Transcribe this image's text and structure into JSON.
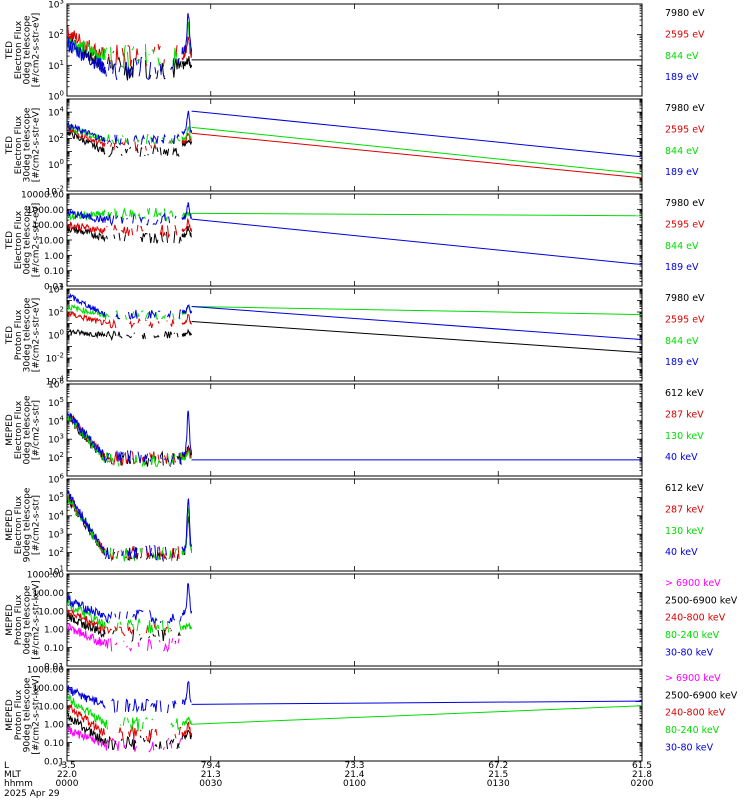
{
  "colors": {
    "black": "#000000",
    "red": "#dd0000",
    "green": "#00dd00",
    "blue": "#0000dd",
    "magenta": "#ff00ff"
  },
  "time_axis": {
    "row_labels": [
      "L",
      "MLT",
      "hhmm"
    ],
    "ticks": [
      {
        "t": 0,
        "L": "-3.5",
        "MLT": "22.0",
        "hhmm": "0000"
      },
      {
        "t": 30,
        "L": "79.4",
        "MLT": "21.3",
        "hhmm": "0030"
      },
      {
        "t": 60,
        "L": "73.3",
        "MLT": "21.4",
        "hhmm": "0100"
      },
      {
        "t": 90,
        "L": "67.2",
        "MLT": "21.5",
        "hhmm": "0130"
      },
      {
        "t": 120,
        "L": "61.5",
        "MLT": "21.8",
        "hhmm": "0200"
      }
    ],
    "date": "2025 Apr 29",
    "xlim": [
      0,
      120
    ]
  },
  "chart_data": [
    {
      "type": "line",
      "ylog": true,
      "ylim": [
        1,
        1000
      ],
      "ylabel": [
        "TED",
        "Electron Flux",
        "0deg telescope",
        "[#/cm2-s-str-eV]"
      ],
      "tick_labels": [
        "10^0",
        "10^1",
        "10^2",
        "10^3"
      ],
      "tick_values": [
        1,
        10,
        100,
        1000
      ],
      "legend": [
        {
          "name": "7980 eV",
          "color": "black"
        },
        {
          "name": "2595 eV",
          "color": "red"
        },
        {
          "name": "844 eV",
          "color": "green"
        },
        {
          "name": "189 eV",
          "color": "blue"
        }
      ],
      "series": [
        {
          "color": "black",
          "start": [
            0.8,
            80
          ],
          "mid": 8,
          "pre": 10,
          "peak": 15,
          "tail": [
            15,
            15
          ]
        },
        {
          "color": "red",
          "start": [
            0.5,
            120
          ],
          "mid": 20,
          "pre": 20,
          "peak": 80,
          "tail": null
        },
        {
          "color": "green",
          "start": [
            0.5,
            60
          ],
          "mid": 20,
          "pre": 30,
          "peak": 200,
          "tail": null
        },
        {
          "color": "blue",
          "start": [
            0.5,
            50
          ],
          "mid": 8,
          "pre": 30,
          "peak": 500,
          "tail": null
        }
      ]
    },
    {
      "type": "line",
      "ylog": true,
      "ylim": [
        0.01,
        100000
      ],
      "ylabel": [
        "TED",
        "Electron Flux",
        "30deg telescope",
        "[#/cm2-s-str-eV]"
      ],
      "tick_labels": [
        "10^-2",
        "10^0",
        "10^2",
        "10^4"
      ],
      "tick_values": [
        0.01,
        1,
        100,
        10000
      ],
      "legend": [
        {
          "name": "7980 eV",
          "color": "black"
        },
        {
          "name": "2595 eV",
          "color": "red"
        },
        {
          "name": "844 eV",
          "color": "green"
        },
        {
          "name": "189 eV",
          "color": "blue"
        }
      ],
      "series": [
        {
          "color": "black",
          "start": [
            0,
            300
          ],
          "mid": 10,
          "pre": 40,
          "peak": 80,
          "tail": null
        },
        {
          "color": "red",
          "start": [
            0,
            500
          ],
          "mid": 30,
          "pre": 60,
          "peak": 250,
          "tail": [
            250,
            0.1
          ]
        },
        {
          "color": "green",
          "start": [
            0,
            800
          ],
          "mid": 80,
          "pre": 100,
          "peak": 700,
          "tail": [
            700,
            0.2
          ]
        },
        {
          "color": "blue",
          "start": [
            0,
            1000
          ],
          "mid": 80,
          "pre": 300,
          "peak": 12000,
          "tail": [
            12000,
            4
          ]
        }
      ]
    },
    {
      "type": "line",
      "ylog": true,
      "ylim": [
        0.01,
        10000
      ],
      "ylabel": [
        "TED",
        "Electron Flux",
        "0deg telescope",
        "[#/cm2-s-str-eV]"
      ],
      "tick_labels": [
        "0.01",
        "0.10",
        "1.00",
        "10.00",
        "100.00",
        "1000.00",
        "10000.00"
      ],
      "tick_values": [
        0.01,
        0.1,
        1,
        10,
        100,
        1000,
        10000
      ],
      "legend": [
        {
          "name": "7980 eV",
          "color": "black"
        },
        {
          "name": "2595 eV",
          "color": "red"
        },
        {
          "name": "844 eV",
          "color": "green"
        },
        {
          "name": "189 eV",
          "color": "blue"
        }
      ],
      "series": [
        {
          "color": "black",
          "start": [
            0,
            60
          ],
          "mid": 15,
          "pre": 20,
          "peak": 60,
          "tail": null
        },
        {
          "color": "red",
          "start": [
            0,
            100
          ],
          "mid": 40,
          "pre": 40,
          "peak": 200,
          "tail": null
        },
        {
          "color": "green",
          "start": [
            0,
            300
          ],
          "mid": 500,
          "pre": 400,
          "peak": 600,
          "tail": [
            550,
            380
          ]
        },
        {
          "color": "blue",
          "start": [
            0,
            600
          ],
          "mid": 200,
          "pre": 300,
          "peak": 2000,
          "tail": [
            230,
            0.25
          ]
        }
      ]
    },
    {
      "type": "line",
      "ylog": true,
      "ylim": [
        0.0001,
        10000
      ],
      "ylabel": [
        "TED",
        "Proton Flux",
        "30deg telescope",
        "[#/cm2-s-str-eV]"
      ],
      "tick_labels": [
        "10^-4",
        "10^-2",
        "10^0",
        "10^2",
        "10^4"
      ],
      "tick_values": [
        0.0001,
        0.01,
        1,
        100,
        10000
      ],
      "legend": [
        {
          "name": "7980 eV",
          "color": "black"
        },
        {
          "name": "2595 eV",
          "color": "red"
        },
        {
          "name": "844 eV",
          "color": "green"
        },
        {
          "name": "189 eV",
          "color": "blue"
        }
      ],
      "series": [
        {
          "color": "black",
          "start": [
            0,
            2
          ],
          "mid": 1,
          "pre": 1,
          "peak": 2,
          "tail": [
            15,
            0.03
          ]
        },
        {
          "color": "red",
          "start": [
            0,
            80
          ],
          "mid": 10,
          "pre": 10,
          "peak": 60,
          "tail": null
        },
        {
          "color": "green",
          "start": [
            0,
            300
          ],
          "mid": 50,
          "pre": 80,
          "peak": 300,
          "tail": [
            300,
            60
          ]
        },
        {
          "color": "blue",
          "start": [
            0,
            3000
          ],
          "mid": 60,
          "pre": 100,
          "peak": 400,
          "tail": [
            300,
            0.4
          ]
        }
      ]
    },
    {
      "type": "line",
      "ylog": true,
      "ylim": [
        10,
        1000000
      ],
      "ylabel": [
        "MEPED",
        "Electron Flux",
        "0deg telescope",
        "[#/cm2-s-str]"
      ],
      "tick_labels": [
        "10^2",
        "10^3",
        "10^4",
        "10^5",
        "10^6"
      ],
      "tick_values": [
        100,
        1000,
        10000,
        100000,
        1000000
      ],
      "legend": [
        {
          "name": "612 keV",
          "color": "black"
        },
        {
          "name": "287 keV",
          "color": "red"
        },
        {
          "name": "130 keV",
          "color": "green"
        },
        {
          "name": "40 keV",
          "color": "blue"
        }
      ],
      "series": [
        {
          "color": "black",
          "start": [
            0,
            15000
          ],
          "mid": 80,
          "pre": 120,
          "peak": 400,
          "tail": null
        },
        {
          "color": "red",
          "start": [
            0,
            25000
          ],
          "mid": 90,
          "pre": 110,
          "peak": 300,
          "tail": null
        },
        {
          "color": "green",
          "start": [
            0,
            20000
          ],
          "mid": 80,
          "pre": 90,
          "peak": 200,
          "tail": null
        },
        {
          "color": "blue",
          "start": [
            0,
            30000
          ],
          "mid": 100,
          "pre": 150,
          "peak": 30000,
          "tail": [
            75,
            75
          ]
        }
      ]
    },
    {
      "type": "line",
      "ylog": true,
      "ylim": [
        10,
        1000000
      ],
      "ylabel": [
        "MEPED",
        "Electron Flux",
        "90deg telescope",
        "[#/cm2-s-str]"
      ],
      "tick_labels": [
        "10^1",
        "10^2",
        "10^3",
        "10^4",
        "10^5",
        "10^6"
      ],
      "tick_values": [
        10,
        100,
        1000,
        10000,
        100000,
        1000000
      ],
      "legend": [
        {
          "name": "612 keV",
          "color": "black"
        },
        {
          "name": "287 keV",
          "color": "red"
        },
        {
          "name": "130 keV",
          "color": "green"
        },
        {
          "name": "40 keV",
          "color": "blue"
        }
      ],
      "series": [
        {
          "color": "black",
          "start": [
            0,
            100000
          ],
          "mid": 80,
          "pre": 100,
          "peak": 8000,
          "tail": null
        },
        {
          "color": "red",
          "start": [
            0,
            150000
          ],
          "mid": 90,
          "pre": 120,
          "peak": 25000,
          "tail": null
        },
        {
          "color": "green",
          "start": [
            0,
            120000
          ],
          "mid": 80,
          "pre": 100,
          "peak": 20000,
          "tail": null
        },
        {
          "color": "blue",
          "start": [
            0,
            200000
          ],
          "mid": 100,
          "pre": 150,
          "peak": 80000,
          "tail": null
        }
      ]
    },
    {
      "type": "line",
      "ylog": true,
      "ylim": [
        0.01,
        1000
      ],
      "ylabel": [
        "MEPED",
        "Proton Flux",
        "0deg telescope",
        "[#/cm2-s-str-keV]"
      ],
      "tick_labels": [
        "0.01",
        "0.10",
        "1.00",
        "10.00",
        "100.00",
        "1000.00"
      ],
      "tick_values": [
        0.01,
        0.1,
        1,
        10,
        100,
        1000
      ],
      "legend": [
        {
          "name": "> 6900 keV",
          "color": "magenta"
        },
        {
          "name": "2500-6900 keV",
          "color": "black"
        },
        {
          "name": "240-800 keV",
          "color": "red"
        },
        {
          "name": "80-240 keV",
          "color": "green"
        },
        {
          "name": "30-80 keV",
          "color": "blue"
        }
      ],
      "series": [
        {
          "color": "magenta",
          "start": [
            0,
            1.5
          ],
          "mid": 0.15,
          "pre": null,
          "peak": null,
          "tail": null
        },
        {
          "color": "black",
          "start": [
            0,
            5
          ],
          "mid": 0.5,
          "pre": null,
          "peak": null,
          "tail": null
        },
        {
          "color": "red",
          "start": [
            0,
            10
          ],
          "mid": 1,
          "pre": null,
          "peak": null,
          "tail": null
        },
        {
          "color": "green",
          "start": [
            0,
            25
          ],
          "mid": 1.5,
          "pre": 1.2,
          "peak": 2,
          "tail": null
        },
        {
          "color": "blue",
          "start": [
            0,
            40
          ],
          "mid": 5,
          "pre": 8,
          "peak": 300,
          "tail": null
        }
      ]
    },
    {
      "type": "line",
      "ylog": true,
      "ylim": [
        0.01,
        1000
      ],
      "ylabel": [
        "MEPED",
        "Proton Flux",
        "90deg telescope",
        "[#/cm2-s-str-keV]"
      ],
      "tick_labels": [
        "0.01",
        "0.10",
        "1.00",
        "10.00",
        "100.00",
        "1000.00"
      ],
      "tick_values": [
        0.01,
        0.1,
        1,
        10,
        100,
        1000
      ],
      "legend": [
        {
          "name": "> 6900 keV",
          "color": "magenta"
        },
        {
          "name": "2500-6900 keV",
          "color": "black"
        },
        {
          "name": "240-800 keV",
          "color": "red"
        },
        {
          "name": "80-240 keV",
          "color": "green"
        },
        {
          "name": "30-80 keV",
          "color": "blue"
        }
      ],
      "series": [
        {
          "color": "magenta",
          "start": [
            0,
            0.5
          ],
          "mid": 0.08,
          "pre": null,
          "peak": null,
          "tail": null
        },
        {
          "color": "black",
          "start": [
            0,
            3
          ],
          "mid": 0.1,
          "pre": 0.2,
          "peak": 0.5,
          "tail": null
        },
        {
          "color": "red",
          "start": [
            0,
            10
          ],
          "mid": 0.3,
          "pre": 0.3,
          "peak": 1,
          "tail": null
        },
        {
          "color": "green",
          "start": [
            0,
            30
          ],
          "mid": 1,
          "pre": 1,
          "peak": 2,
          "tail": [
            1,
            10
          ]
        },
        {
          "color": "blue",
          "start": [
            0,
            80
          ],
          "mid": 10,
          "pre": 15,
          "peak": 200,
          "tail": [
            12,
            18
          ]
        }
      ]
    }
  ]
}
